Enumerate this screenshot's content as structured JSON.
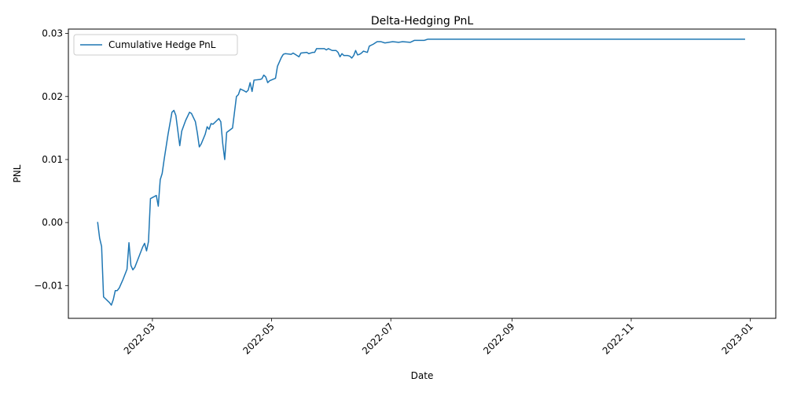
{
  "chart_data": {
    "type": "line",
    "title": "Delta-Hedging PnL",
    "xlabel": "Date",
    "ylabel": "PNL",
    "xlim": [
      "2022-01-17",
      "2023-01-14"
    ],
    "ylim": [
      -0.0152,
      0.0307
    ],
    "x_ticks": [
      "2022-03-01",
      "2022-05-01",
      "2022-07-01",
      "2022-09-01",
      "2022-11-01",
      "2023-01-01"
    ],
    "x_tick_labels": [
      "2022-03",
      "2022-05",
      "2022-07",
      "2022-09",
      "2022-11",
      "2023-01"
    ],
    "y_ticks": [
      -0.01,
      0.0,
      0.01,
      0.02,
      0.03
    ],
    "y_tick_labels": [
      "−0.01",
      "0.00",
      "0.01",
      "0.02",
      "0.03"
    ],
    "grid": false,
    "legend": {
      "position": "top-left"
    },
    "series": [
      {
        "name": "Cumulative Hedge PnL",
        "color": "#1f77b4",
        "points": [
          [
            "2022-02-01",
            0.0
          ],
          [
            "2022-02-02",
            -0.0025
          ],
          [
            "2022-02-03",
            -0.0038
          ],
          [
            "2022-02-04",
            -0.0118
          ],
          [
            "2022-02-07",
            -0.0127
          ],
          [
            "2022-02-08",
            -0.0131
          ],
          [
            "2022-02-09",
            -0.0122
          ],
          [
            "2022-02-10",
            -0.0108
          ],
          [
            "2022-02-11",
            -0.0108
          ],
          [
            "2022-02-12",
            -0.0104
          ],
          [
            "2022-02-14",
            -0.009
          ],
          [
            "2022-02-16",
            -0.0074
          ],
          [
            "2022-02-17",
            -0.0032
          ],
          [
            "2022-02-18",
            -0.0068
          ],
          [
            "2022-02-19",
            -0.0075
          ],
          [
            "2022-02-20",
            -0.0071
          ],
          [
            "2022-02-22",
            -0.0055
          ],
          [
            "2022-02-24",
            -0.0039
          ],
          [
            "2022-02-25",
            -0.0033
          ],
          [
            "2022-02-26",
            -0.0045
          ],
          [
            "2022-02-27",
            -0.003
          ],
          [
            "2022-02-28",
            0.0038
          ],
          [
            "2022-03-03",
            0.0043
          ],
          [
            "2022-03-04",
            0.0026
          ],
          [
            "2022-03-05",
            0.0068
          ],
          [
            "2022-03-06",
            0.0078
          ],
          [
            "2022-03-07",
            0.01
          ],
          [
            "2022-03-09",
            0.014
          ],
          [
            "2022-03-11",
            0.0175
          ],
          [
            "2022-03-12",
            0.0178
          ],
          [
            "2022-03-13",
            0.017
          ],
          [
            "2022-03-15",
            0.0122
          ],
          [
            "2022-03-16",
            0.0145
          ],
          [
            "2022-03-18",
            0.0162
          ],
          [
            "2022-03-20",
            0.0175
          ],
          [
            "2022-03-21",
            0.0173
          ],
          [
            "2022-03-23",
            0.016
          ],
          [
            "2022-03-24",
            0.0142
          ],
          [
            "2022-03-25",
            0.012
          ],
          [
            "2022-03-26",
            0.0125
          ],
          [
            "2022-03-28",
            0.014
          ],
          [
            "2022-03-29",
            0.0152
          ],
          [
            "2022-03-30",
            0.0148
          ],
          [
            "2022-03-31",
            0.0157
          ],
          [
            "2022-04-01",
            0.0156
          ],
          [
            "2022-04-03",
            0.0162
          ],
          [
            "2022-04-04",
            0.0165
          ],
          [
            "2022-04-05",
            0.016
          ],
          [
            "2022-04-06",
            0.0125
          ],
          [
            "2022-04-07",
            0.01
          ],
          [
            "2022-04-08",
            0.0143
          ],
          [
            "2022-04-11",
            0.015
          ],
          [
            "2022-04-12",
            0.0175
          ],
          [
            "2022-04-13",
            0.02
          ],
          [
            "2022-04-14",
            0.0203
          ],
          [
            "2022-04-15",
            0.0212
          ],
          [
            "2022-04-17",
            0.0209
          ],
          [
            "2022-04-18",
            0.0207
          ],
          [
            "2022-04-19",
            0.021
          ],
          [
            "2022-04-20",
            0.0222
          ],
          [
            "2022-04-21",
            0.0208
          ],
          [
            "2022-04-22",
            0.0226
          ],
          [
            "2022-04-25",
            0.0227
          ],
          [
            "2022-04-26",
            0.0228
          ],
          [
            "2022-04-27",
            0.0234
          ],
          [
            "2022-04-28",
            0.0231
          ],
          [
            "2022-04-29",
            0.0222
          ],
          [
            "2022-04-30",
            0.0225
          ],
          [
            "2022-05-03",
            0.0229
          ],
          [
            "2022-05-04",
            0.0248
          ],
          [
            "2022-05-06",
            0.0262
          ],
          [
            "2022-05-07",
            0.0267
          ],
          [
            "2022-05-08",
            0.0268
          ],
          [
            "2022-05-11",
            0.0267
          ],
          [
            "2022-05-12",
            0.0269
          ],
          [
            "2022-05-14",
            0.0265
          ],
          [
            "2022-05-15",
            0.0263
          ],
          [
            "2022-05-16",
            0.0269
          ],
          [
            "2022-05-19",
            0.027
          ],
          [
            "2022-05-20",
            0.0268
          ],
          [
            "2022-05-22",
            0.027
          ],
          [
            "2022-05-23",
            0.027
          ],
          [
            "2022-05-24",
            0.0276
          ],
          [
            "2022-05-27",
            0.0276
          ],
          [
            "2022-05-28",
            0.0276
          ],
          [
            "2022-05-29",
            0.0274
          ],
          [
            "2022-05-30",
            0.0276
          ],
          [
            "2022-06-01",
            0.0273
          ],
          [
            "2022-06-02",
            0.0273
          ],
          [
            "2022-06-03",
            0.0273
          ],
          [
            "2022-06-04",
            0.027
          ],
          [
            "2022-06-05",
            0.0263
          ],
          [
            "2022-06-06",
            0.0268
          ],
          [
            "2022-06-07",
            0.0265
          ],
          [
            "2022-06-09",
            0.0265
          ],
          [
            "2022-06-10",
            0.0264
          ],
          [
            "2022-06-11",
            0.0261
          ],
          [
            "2022-06-12",
            0.0265
          ],
          [
            "2022-06-13",
            0.0273
          ],
          [
            "2022-06-14",
            0.0266
          ],
          [
            "2022-06-15",
            0.0267
          ],
          [
            "2022-06-16",
            0.0269
          ],
          [
            "2022-06-17",
            0.0272
          ],
          [
            "2022-06-19",
            0.027
          ],
          [
            "2022-06-20",
            0.028
          ],
          [
            "2022-06-22",
            0.0283
          ],
          [
            "2022-06-24",
            0.0287
          ],
          [
            "2022-06-26",
            0.0287
          ],
          [
            "2022-06-28",
            0.0285
          ],
          [
            "2022-07-02",
            0.0287
          ],
          [
            "2022-07-05",
            0.0286
          ],
          [
            "2022-07-07",
            0.0287
          ],
          [
            "2022-07-11",
            0.0286
          ],
          [
            "2022-07-13",
            0.0289
          ],
          [
            "2022-07-18",
            0.0289
          ],
          [
            "2022-07-19",
            0.029
          ],
          [
            "2022-07-20",
            0.0291
          ],
          [
            "2022-12-29",
            0.0291
          ]
        ]
      }
    ]
  }
}
